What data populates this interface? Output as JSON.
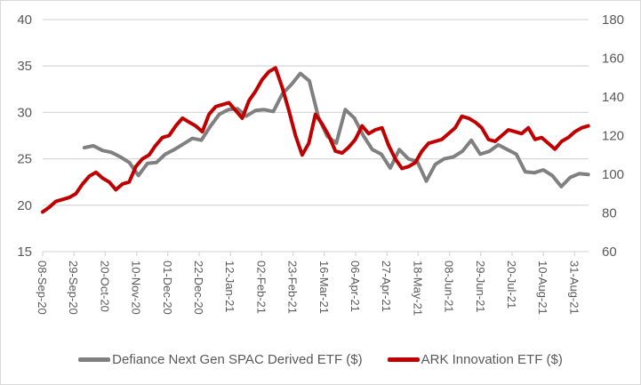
{
  "chart_data": {
    "type": "line",
    "title": "",
    "xlabel": "",
    "ylabel_left": "",
    "ylabel_right": "",
    "y_left": {
      "min": 15,
      "max": 40,
      "step": 5,
      "ticks": [
        "15",
        "20",
        "25",
        "30",
        "35",
        "40"
      ]
    },
    "y_right": {
      "min": 60,
      "max": 180,
      "step": 20,
      "ticks": [
        "60",
        "80",
        "100",
        "120",
        "140",
        "160",
        "180"
      ]
    },
    "grid": true,
    "legend_position": "bottom",
    "x_ticks": [
      "08-Sep-20",
      "29-Sep-20",
      "20-Oct-20",
      "10-Nov-20",
      "01-Dec-20",
      "22-Dec-20",
      "12-Jan-21",
      "02-Feb-21",
      "23-Feb-21",
      "16-Mar-21",
      "06-Apr-21",
      "27-Apr-21",
      "18-May-21",
      "08-Jun-21",
      "29-Jun-21",
      "20-Jul-21",
      "10-Aug-21",
      "31-Aug-21"
    ],
    "x_week_count": 53,
    "series": [
      {
        "name": "Defiance Next Gen SPAC Derived ETF ($)",
        "axis": "left",
        "color": "#808080",
        "start_week": 4,
        "values": [
          26.2,
          26.4,
          25.9,
          25.7,
          25.2,
          24.6,
          23.2,
          24.5,
          24.6,
          25.5,
          26.0,
          26.6,
          27.2,
          27.0,
          28.5,
          29.8,
          30.3,
          30.4,
          29.6,
          30.2,
          30.3,
          30.1,
          32.0,
          33.0,
          34.2,
          33.4,
          29.5,
          27.4,
          26.7,
          30.3,
          29.4,
          27.5,
          26.0,
          25.5,
          24.0,
          26.0,
          25.0,
          24.7,
          22.6,
          24.4,
          25.0,
          25.2,
          25.8,
          27.0,
          25.5,
          25.8,
          26.5,
          26.0,
          25.5,
          23.6,
          23.5,
          23.8,
          23.2,
          22.0,
          23.0,
          23.4,
          23.3
        ]
      },
      {
        "name": "ARK Innovation ETF ($)",
        "axis": "right",
        "color": "#c00000",
        "start_week": 0,
        "values": [
          80.5,
          83,
          86,
          87,
          88,
          90,
          95,
          99,
          101,
          98,
          96,
          92,
          95,
          96,
          104,
          108,
          110,
          115,
          119,
          120,
          125,
          129,
          127,
          125,
          122,
          131,
          135,
          136,
          137,
          133,
          129,
          138,
          143,
          149,
          153,
          155,
          145,
          133,
          120,
          110,
          116,
          131,
          126,
          120,
          112,
          111,
          114,
          118,
          125,
          121,
          123,
          124,
          115,
          108,
          103,
          104,
          106,
          112,
          116,
          117,
          118,
          121,
          124,
          130,
          129,
          127,
          124,
          118,
          117,
          120,
          123,
          122,
          121,
          124,
          118,
          119,
          116,
          113,
          117,
          119,
          122,
          124,
          125
        ]
      }
    ]
  }
}
